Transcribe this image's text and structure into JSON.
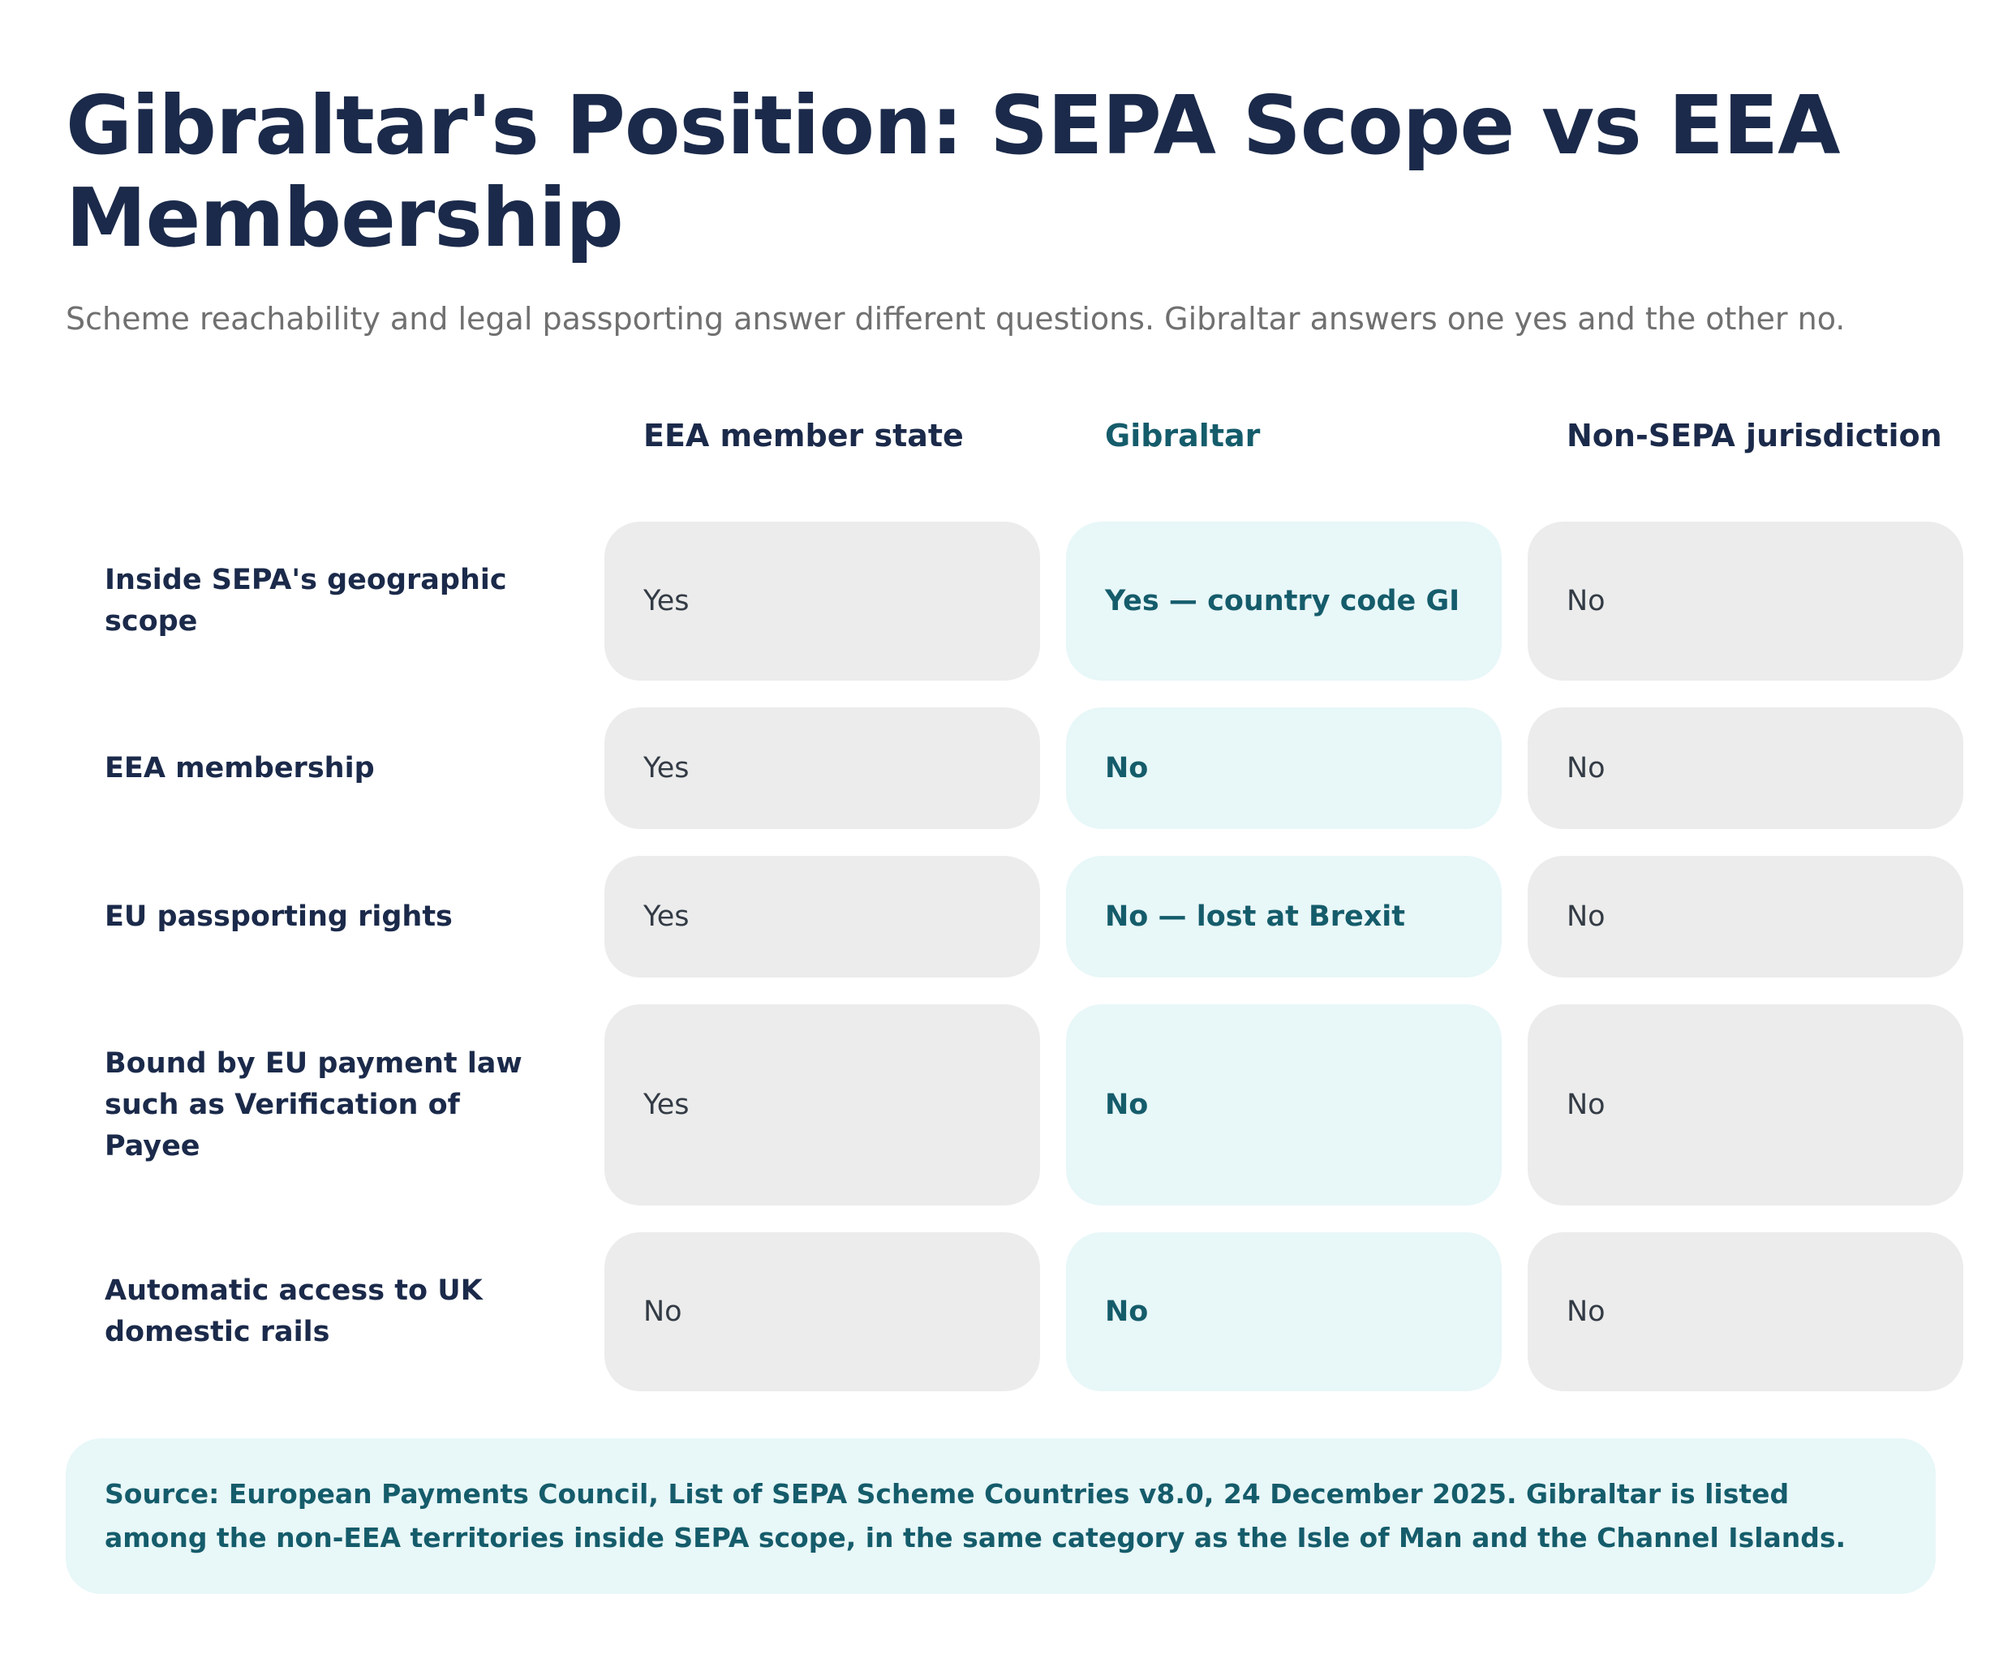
{
  "header": {
    "title": "Gibraltar's Position: SEPA Scope vs EEA Membership",
    "subtitle": "Scheme reachability and legal passporting answer different questions. Gibraltar answers one yes and the other no."
  },
  "table": {
    "columns": [
      "EEA member state",
      "Gibraltar",
      "Non-SEPA jurisdiction"
    ],
    "rows": [
      {
        "label": "Inside SEPA's geographic scope",
        "values": [
          "Yes",
          "Yes — country code GI",
          "No"
        ]
      },
      {
        "label": "EEA membership",
        "values": [
          "Yes",
          "No",
          "No"
        ]
      },
      {
        "label": "EU passporting rights",
        "values": [
          "Yes",
          "No — lost at Brexit",
          "No"
        ]
      },
      {
        "label": "Bound by EU payment law such as Verification of Payee",
        "values": [
          "Yes",
          "No",
          "No"
        ]
      },
      {
        "label": "Automatic access to UK domestic rails",
        "values": [
          "No",
          "No",
          "No"
        ]
      }
    ]
  },
  "source_note": "Source: European Payments Council, List of SEPA Scheme Countries v8.0, 24 December 2025. Gibraltar is listed among the non-EEA territories inside SEPA scope, in the same category as the Isle of Man and the Channel Islands.",
  "colors": {
    "heading": "#1b2a4a",
    "accent": "#155c6b",
    "accent_background": "#e8f7f8",
    "neutral_background": "#ececec",
    "muted_text": "#707070"
  }
}
